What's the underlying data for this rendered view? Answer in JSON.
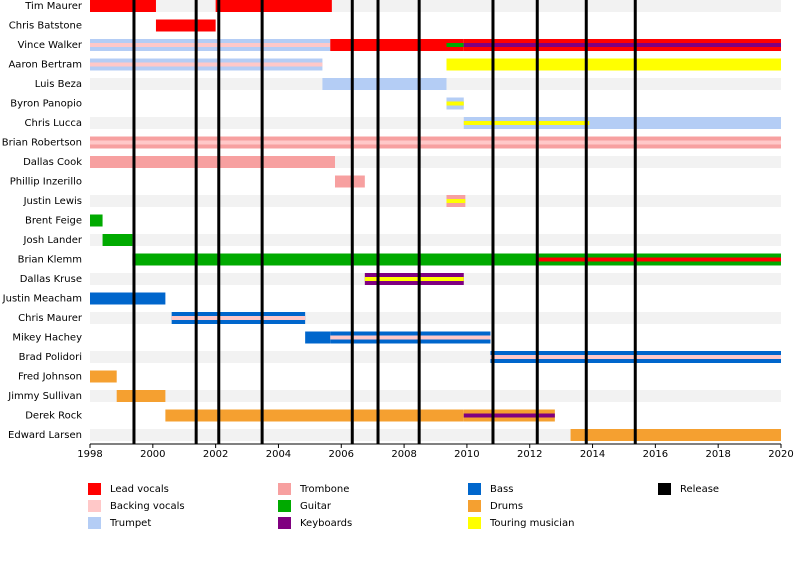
{
  "chart_data": {
    "type": "timeline",
    "members": [
      "Tim Maurer",
      "Chris Batstone",
      "Vince Walker",
      "Aaron Bertram",
      "Luis Beza",
      "Byron Panopio",
      "Chris Lucca",
      "Brian Robertson",
      "Dallas Cook",
      "Phillip Inzerillo",
      "Justin Lewis",
      "Brent Feige",
      "Josh Lander",
      "Brian Klemm",
      "Dallas Kruse",
      "Justin Meacham",
      "Chris Maurer",
      "Mikey Hachey",
      "Brad Polidori",
      "Fred Johnson",
      "Jimmy Sullivan",
      "Derek Rock",
      "Edward Larsen"
    ],
    "roles": [
      {
        "name": "Lead vocals",
        "color": "#ff0000"
      },
      {
        "name": "Backing vocals",
        "color": "#ffc8c8"
      },
      {
        "name": "Trumpet",
        "color": "#b4cdf5"
      },
      {
        "name": "Trombone",
        "color": "#f7a0a0"
      },
      {
        "name": "Guitar",
        "color": "#00aa00"
      },
      {
        "name": "Keyboards",
        "color": "#800080"
      },
      {
        "name": "Bass",
        "color": "#0066cc"
      },
      {
        "name": "Drums",
        "color": "#f5a030"
      },
      {
        "name": "Touring musician",
        "color": "#ffff00"
      },
      {
        "name": "Release",
        "color": "#000000"
      }
    ],
    "bars": [
      {
        "member": 0,
        "start": 1998,
        "end": 2000.1,
        "role": "Lead vocals"
      },
      {
        "member": 0,
        "start": 2002.0,
        "end": 2005.7,
        "role": "Lead vocals"
      },
      {
        "member": 1,
        "start": 2000.1,
        "end": 2002.0,
        "role": "Lead vocals"
      },
      {
        "member": 2,
        "start": 1998,
        "end": 2005.65,
        "role": "Trumpet",
        "stripe": "Backing vocals"
      },
      {
        "member": 2,
        "start": 2005.65,
        "end": 2009.35,
        "role": "Lead vocals"
      },
      {
        "member": 2,
        "start": 2009.35,
        "end": 2009.9,
        "role": "Lead vocals",
        "stripe": "Guitar"
      },
      {
        "member": 2,
        "start": 2009.9,
        "end": 2020,
        "role": "Lead vocals",
        "stripe": "Keyboards"
      },
      {
        "member": 3,
        "start": 1998,
        "end": 2005.4,
        "role": "Trumpet",
        "stripe": "Backing vocals"
      },
      {
        "member": 3,
        "start": 2009.35,
        "end": 2020,
        "role": "Touring musician"
      },
      {
        "member": 4,
        "start": 2005.4,
        "end": 2009.35,
        "role": "Trumpet"
      },
      {
        "member": 5,
        "start": 2009.35,
        "end": 2009.9,
        "role": "Trumpet",
        "stripe": "Touring musician"
      },
      {
        "member": 6,
        "start": 2009.9,
        "end": 2013.9,
        "role": "Trumpet",
        "stripe": "Touring musician"
      },
      {
        "member": 6,
        "start": 2013.9,
        "end": 2020,
        "role": "Trumpet"
      },
      {
        "member": 7,
        "start": 1998,
        "end": 2020,
        "role": "Trombone",
        "stripe": "Backing vocals"
      },
      {
        "member": 8,
        "start": 1998,
        "end": 2005.8,
        "role": "Trombone"
      },
      {
        "member": 9,
        "start": 2005.8,
        "end": 2006.75,
        "role": "Trombone"
      },
      {
        "member": 10,
        "start": 2009.35,
        "end": 2009.95,
        "role": "Trombone",
        "stripe": "Touring musician"
      },
      {
        "member": 11,
        "start": 1998,
        "end": 1998.4,
        "role": "Guitar"
      },
      {
        "member": 12,
        "start": 1998.4,
        "end": 1999.35,
        "role": "Guitar"
      },
      {
        "member": 13,
        "start": 1999.35,
        "end": 2012.25,
        "role": "Guitar"
      },
      {
        "member": 13,
        "start": 2012.25,
        "end": 2020,
        "role": "Guitar",
        "stripe": "Lead vocals"
      },
      {
        "member": 14,
        "start": 2006.75,
        "end": 2009.9,
        "role": "Keyboards",
        "stripe": "Touring musician"
      },
      {
        "member": 15,
        "start": 1998,
        "end": 2000.4,
        "role": "Bass"
      },
      {
        "member": 16,
        "start": 2000.6,
        "end": 2004.85,
        "role": "Bass",
        "stripe": "Backing vocals"
      },
      {
        "member": 17,
        "start": 2004.85,
        "end": 2005.65,
        "role": "Bass"
      },
      {
        "member": 17,
        "start": 2005.65,
        "end": 2010.75,
        "role": "Bass",
        "stripe": "Backing vocals"
      },
      {
        "member": 18,
        "start": 2010.75,
        "end": 2020,
        "role": "Bass",
        "stripe": "Backing vocals"
      },
      {
        "member": 19,
        "start": 1998,
        "end": 1998.85,
        "role": "Drums"
      },
      {
        "member": 20,
        "start": 1998.85,
        "end": 2000.4,
        "role": "Drums"
      },
      {
        "member": 21,
        "start": 2000.4,
        "end": 2009.9,
        "role": "Drums"
      },
      {
        "member": 21,
        "start": 2009.9,
        "end": 2012.8,
        "role": "Drums",
        "stripe": "Keyboards"
      },
      {
        "member": 22,
        "start": 2013.3,
        "end": 2020,
        "role": "Drums"
      }
    ],
    "releases": [
      1999.4,
      2001.38,
      2002.1,
      2003.48,
      2006.35,
      2007.17,
      2008.48,
      2010.83,
      2012.24,
      2013.8,
      2015.36
    ],
    "xlim": [
      1998,
      2020
    ],
    "xticks": [
      1998,
      2000,
      2002,
      2004,
      2006,
      2008,
      2010,
      2012,
      2014,
      2016,
      2018,
      2020
    ]
  }
}
